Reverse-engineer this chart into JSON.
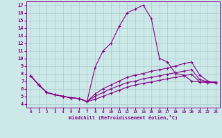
{
  "xlabel": "Windchill (Refroidissement éolien,°C)",
  "bg_color": "#cce8e8",
  "grid_color": "#aacccc",
  "line_color": "#880088",
  "xlim": [
    -0.5,
    23.5
  ],
  "ylim": [
    3.5,
    17.5
  ],
  "xticks": [
    0,
    1,
    2,
    3,
    4,
    5,
    6,
    7,
    8,
    9,
    10,
    11,
    12,
    13,
    14,
    15,
    16,
    17,
    18,
    19,
    20,
    21,
    22,
    23
  ],
  "yticks": [
    4,
    5,
    6,
    7,
    8,
    9,
    10,
    11,
    12,
    13,
    14,
    15,
    16,
    17
  ],
  "series": [
    [
      7.7,
      6.5,
      5.5,
      5.2,
      5.0,
      4.8,
      4.7,
      4.3,
      8.8,
      11.0,
      12.0,
      14.2,
      16.0,
      16.5,
      17.0,
      15.2,
      10.0,
      9.5,
      8.0,
      7.8,
      7.0,
      6.9,
      6.9,
      6.9
    ],
    [
      7.7,
      6.5,
      5.5,
      5.2,
      5.0,
      4.8,
      4.7,
      4.3,
      5.3,
      6.0,
      6.5,
      7.0,
      7.5,
      7.8,
      8.0,
      8.3,
      8.5,
      8.7,
      9.0,
      9.3,
      9.5,
      7.8,
      7.0,
      6.8
    ],
    [
      7.7,
      6.5,
      5.5,
      5.2,
      5.0,
      4.8,
      4.7,
      4.3,
      5.0,
      5.5,
      6.0,
      6.4,
      6.8,
      7.0,
      7.3,
      7.5,
      7.7,
      7.9,
      8.1,
      8.3,
      8.5,
      7.2,
      6.9,
      6.8
    ],
    [
      7.7,
      6.5,
      5.5,
      5.2,
      5.0,
      4.8,
      4.7,
      4.3,
      4.6,
      5.0,
      5.4,
      5.8,
      6.2,
      6.5,
      6.7,
      6.9,
      7.1,
      7.3,
      7.5,
      7.7,
      7.9,
      6.9,
      6.8,
      6.8
    ]
  ]
}
